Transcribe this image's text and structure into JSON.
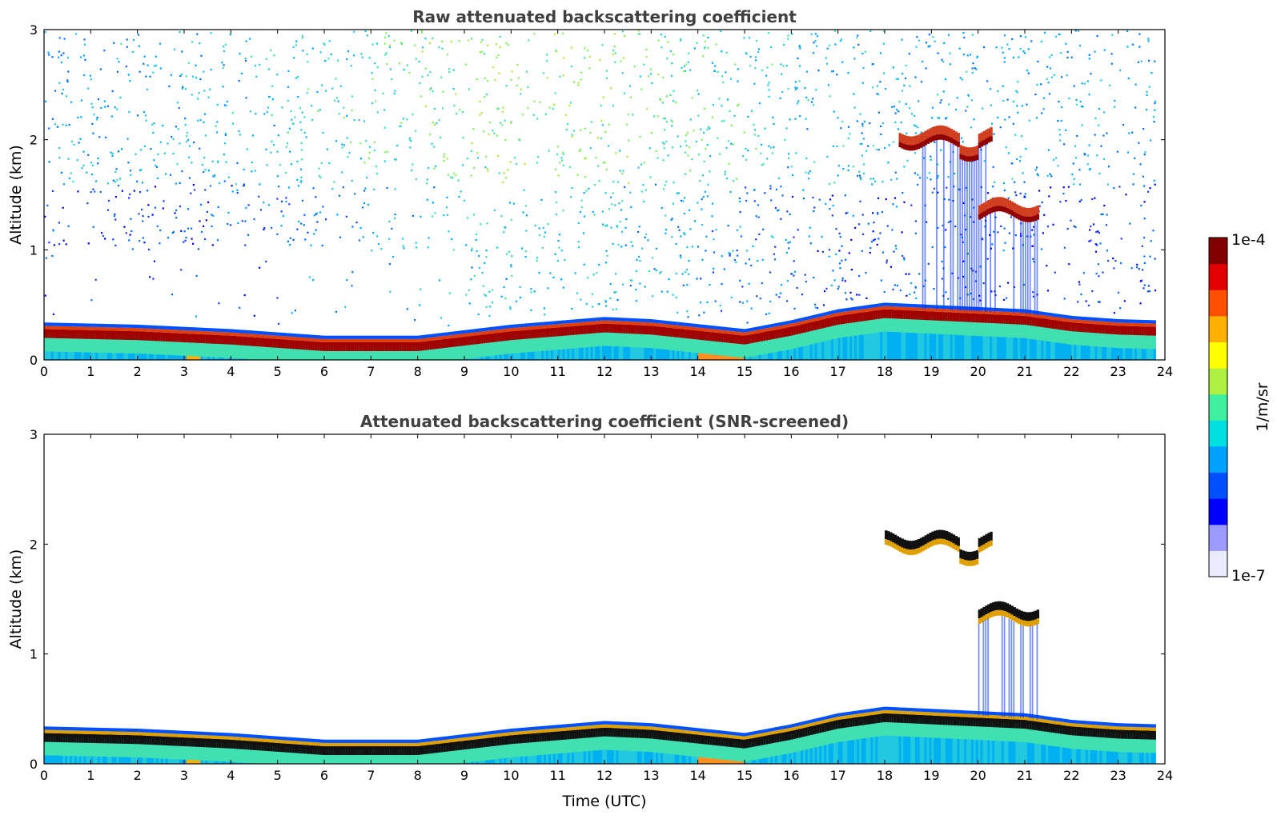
{
  "chart_data": [
    {
      "type": "heatmap",
      "title": "Raw attenuated backscattering coefficient",
      "xlabel": "",
      "ylabel": "Altitude (km)",
      "xlim": [
        0,
        24
      ],
      "ylim": [
        0,
        3
      ],
      "x_ticks": [
        "0",
        "1",
        "2",
        "3",
        "4",
        "5",
        "6",
        "7",
        "8",
        "9",
        "10",
        "11",
        "12",
        "13",
        "14",
        "15",
        "16",
        "17",
        "18",
        "19",
        "20",
        "21",
        "22",
        "23",
        "24"
      ],
      "y_ticks": [
        "0",
        "1",
        "2",
        "3"
      ],
      "features": {
        "boundary_layer_top_km": [
          [
            0,
            0.3
          ],
          [
            2,
            0.28
          ],
          [
            4,
            0.24
          ],
          [
            6,
            0.18
          ],
          [
            8,
            0.18
          ],
          [
            10,
            0.28
          ],
          [
            12,
            0.35
          ],
          [
            13,
            0.33
          ],
          [
            15,
            0.24
          ],
          [
            16,
            0.32
          ],
          [
            17,
            0.42
          ],
          [
            18,
            0.48
          ],
          [
            19,
            0.46
          ],
          [
            20,
            0.44
          ],
          [
            21,
            0.42
          ],
          [
            22,
            0.36
          ],
          [
            23,
            0.33
          ],
          [
            23.8,
            0.32
          ]
        ],
        "cloud_layers": [
          {
            "x_start": 18.3,
            "x_end": 20.3,
            "altitude_km": 2.0
          },
          {
            "x_start": 20.0,
            "x_end": 21.3,
            "altitude_km": 1.35
          }
        ],
        "noisy": true
      }
    },
    {
      "type": "heatmap",
      "title": "Attenuated backscattering coefficient (SNR-screened)",
      "xlabel": "Time (UTC)",
      "ylabel": "Altitude (km)",
      "xlim": [
        0,
        24
      ],
      "ylim": [
        0,
        3
      ],
      "x_ticks": [
        "0",
        "1",
        "2",
        "3",
        "4",
        "5",
        "6",
        "7",
        "8",
        "9",
        "10",
        "11",
        "12",
        "13",
        "14",
        "15",
        "16",
        "17",
        "18",
        "19",
        "20",
        "21",
        "22",
        "23",
        "24"
      ],
      "y_ticks": [
        "0",
        "1",
        "2",
        "3"
      ],
      "features": {
        "boundary_layer_top_km": [
          [
            0,
            0.3
          ],
          [
            2,
            0.28
          ],
          [
            4,
            0.24
          ],
          [
            6,
            0.18
          ],
          [
            8,
            0.18
          ],
          [
            10,
            0.28
          ],
          [
            12,
            0.35
          ],
          [
            13,
            0.33
          ],
          [
            15,
            0.24
          ],
          [
            16,
            0.32
          ],
          [
            17,
            0.42
          ],
          [
            18,
            0.48
          ],
          [
            19,
            0.46
          ],
          [
            20,
            0.44
          ],
          [
            21,
            0.42
          ],
          [
            22,
            0.36
          ],
          [
            23,
            0.33
          ],
          [
            23.8,
            0.32
          ]
        ],
        "cloud_layers": [
          {
            "x_start": 18.0,
            "x_end": 20.3,
            "altitude_km": 2.0
          },
          {
            "x_start": 20.0,
            "x_end": 21.3,
            "altitude_km": 1.35
          }
        ],
        "noisy": false
      }
    }
  ],
  "colorbar": {
    "max_label": "1e-4",
    "min_label": "1e-7",
    "unit_label": "1/m/sr",
    "colors": [
      "#ebebff",
      "#9b9bff",
      "#0000ff",
      "#0050ff",
      "#00a0ff",
      "#00e0e0",
      "#40f0a0",
      "#b0f040",
      "#ffff00",
      "#ffb000",
      "#ff5000",
      "#e00000",
      "#800000"
    ]
  }
}
